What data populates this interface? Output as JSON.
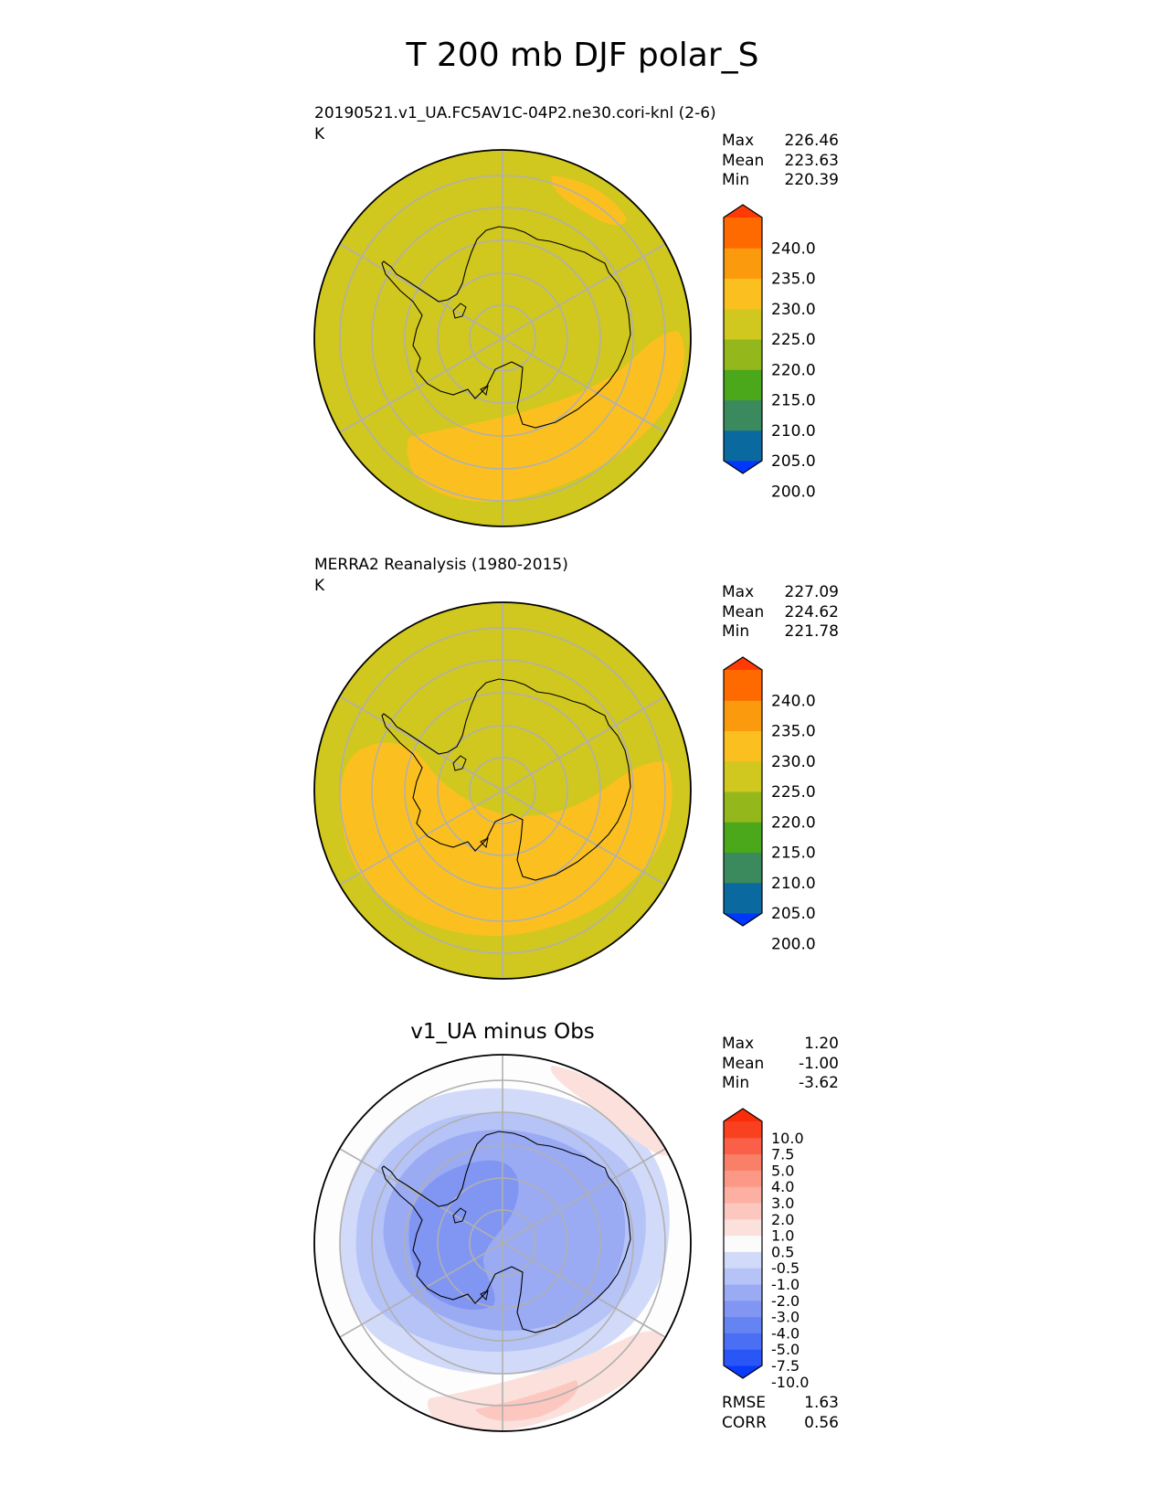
{
  "figure": {
    "title": "T 200 mb DJF polar_S"
  },
  "panels": [
    {
      "id": "test",
      "title_lines": [
        "20190521.v1_UA.FC5AV1C-04P2.ne30.cori-knl (2-6)",
        "K"
      ],
      "center_title": "",
      "stats": [
        {
          "label": "Max",
          "value": "226.46"
        },
        {
          "label": "Mean",
          "value": "223.63"
        },
        {
          "label": "Min",
          "value": "220.39"
        }
      ],
      "colorbar": {
        "ticks": [
          "240.0",
          "235.0",
          "230.0",
          "225.0",
          "220.0",
          "215.0",
          "210.0",
          "205.0",
          "200.0"
        ],
        "colors": [
          "#0037ff",
          "#0a6aa0",
          "#3a8a5e",
          "#4aa81a",
          "#94b81b",
          "#d0c71f",
          "#fbc020",
          "#fc9a0e",
          "#ff6a00",
          "#ff3a05"
        ]
      }
    },
    {
      "id": "reference",
      "title_lines": [
        "MERRA2 Reanalysis (1980-2015)",
        "K"
      ],
      "center_title": "",
      "stats": [
        {
          "label": "Max",
          "value": "227.09"
        },
        {
          "label": "Mean",
          "value": "224.62"
        },
        {
          "label": "Min",
          "value": "221.78"
        }
      ],
      "colorbar": {
        "ticks": [
          "240.0",
          "235.0",
          "230.0",
          "225.0",
          "220.0",
          "215.0",
          "210.0",
          "205.0",
          "200.0"
        ],
        "colors": [
          "#0037ff",
          "#0a6aa0",
          "#3a8a5e",
          "#4aa81a",
          "#94b81b",
          "#d0c71f",
          "#fbc020",
          "#fc9a0e",
          "#ff6a00",
          "#ff3a05"
        ]
      }
    },
    {
      "id": "difference",
      "title_lines": [],
      "center_title": "v1_UA minus Obs",
      "stats": [
        {
          "label": "Max",
          "value": "1.20"
        },
        {
          "label": "Mean",
          "value": "-1.00"
        },
        {
          "label": "Min",
          "value": "-3.62"
        }
      ],
      "extra_stats": [
        {
          "label": "RMSE",
          "value": "1.63"
        },
        {
          "label": "CORR",
          "value": "0.56"
        }
      ],
      "colorbar": {
        "ticks": [
          "10.0",
          "7.5",
          "5.0",
          "4.0",
          "3.0",
          "2.0",
          "1.0",
          "0.5",
          "-0.5",
          "-1.0",
          "-2.0",
          "-3.0",
          "-4.0",
          "-5.0",
          "-7.5",
          "-10.0"
        ],
        "colors": [
          "#0a3bfb",
          "#2a56f8",
          "#4a6ff5",
          "#6683f3",
          "#8196f3",
          "#9aabf4",
          "#b6c3f7",
          "#d2daf9",
          "#fbfbfb",
          "#fbe0dc",
          "#fcc7bf",
          "#fcb0a2",
          "#fb9886",
          "#fa7f69",
          "#fa6047",
          "#f9401f",
          "#fa2c0a"
        ]
      }
    }
  ],
  "chart_data": [
    {
      "type": "heatmap",
      "projection": "south polar stereographic",
      "title": "20190521.v1_UA.FC5AV1C-04P2.ne30.cori-knl (2-6)",
      "units": "K",
      "levels": [
        200.0,
        205.0,
        210.0,
        215.0,
        220.0,
        225.0,
        230.0,
        235.0,
        240.0
      ],
      "max": 226.46,
      "mean": 223.63,
      "min": 220.39
    },
    {
      "type": "heatmap",
      "projection": "south polar stereographic",
      "title": "MERRA2 Reanalysis (1980-2015)",
      "units": "K",
      "levels": [
        200.0,
        205.0,
        210.0,
        215.0,
        220.0,
        225.0,
        230.0,
        235.0,
        240.0
      ],
      "max": 227.09,
      "mean": 224.62,
      "min": 221.78
    },
    {
      "type": "heatmap",
      "projection": "south polar stereographic",
      "title": "v1_UA minus Obs",
      "levels": [
        -10.0,
        -7.5,
        -5.0,
        -4.0,
        -3.0,
        -2.0,
        -1.0,
        -0.5,
        0.5,
        1.0,
        2.0,
        3.0,
        4.0,
        5.0,
        7.5,
        10.0
      ],
      "max": 1.2,
      "mean": -1.0,
      "min": -3.62,
      "rmse": 1.63,
      "corr": 0.56
    }
  ]
}
